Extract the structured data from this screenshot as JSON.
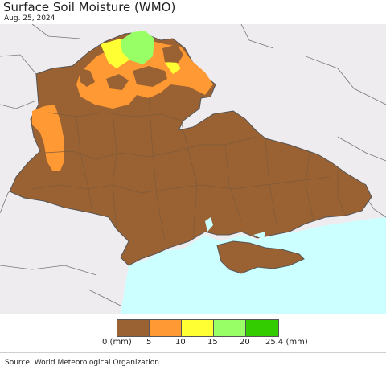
{
  "header": {
    "title": "Surface Soil Moisture (WMO)",
    "date": "Aug. 25, 2024"
  },
  "legend": {
    "colors": [
      "#9a6233",
      "#ff9933",
      "#ffff33",
      "#99ff66",
      "#33cc00"
    ],
    "labels": [
      "0 (mm)",
      "5",
      "10",
      "15",
      "20",
      "25.4 (mm)"
    ]
  },
  "footer": {
    "source": "Source: World Meteorological Organization"
  },
  "map_colors": {
    "land_outside": "#efecef",
    "water": "#ccffff",
    "dry": "#9a6233",
    "low": "#ff9933",
    "mid": "#ffff33",
    "high": "#99ff66",
    "border": "#777777"
  }
}
